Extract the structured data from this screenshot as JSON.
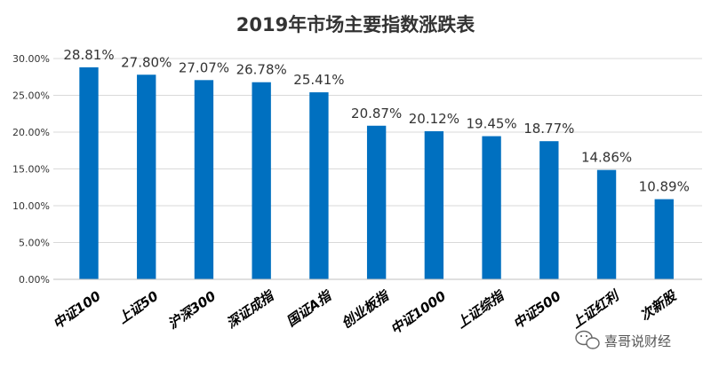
{
  "chart_data": {
    "type": "bar",
    "title": "2019年市场主要指数涨跌表",
    "xlabel": "",
    "ylabel": "",
    "categories": [
      "中证100",
      "上证50",
      "沪深300",
      "深证成指",
      "国证A指",
      "创业板指",
      "中证1000",
      "上证综指",
      "中证500",
      "上证红利",
      "次新股"
    ],
    "values": [
      28.81,
      27.8,
      27.07,
      26.78,
      25.41,
      20.87,
      20.12,
      19.45,
      18.77,
      14.86,
      10.89
    ],
    "data_labels": [
      "28.81%",
      "27.80%",
      "27.07%",
      "26.78%",
      "25.41%",
      "20.87%",
      "20.12%",
      "19.45%",
      "18.77%",
      "14.86%",
      "10.89%"
    ],
    "ylim": [
      0,
      30
    ],
    "yticks": [
      0,
      5,
      10,
      15,
      20,
      25,
      30
    ],
    "ytick_labels": [
      "0.00%",
      "5.00%",
      "10.00%",
      "15.00%",
      "20.00%",
      "25.00%",
      "30.00%"
    ],
    "grid": true,
    "bar_color": "#0070c0"
  },
  "watermark": {
    "text": "喜哥说财经"
  }
}
